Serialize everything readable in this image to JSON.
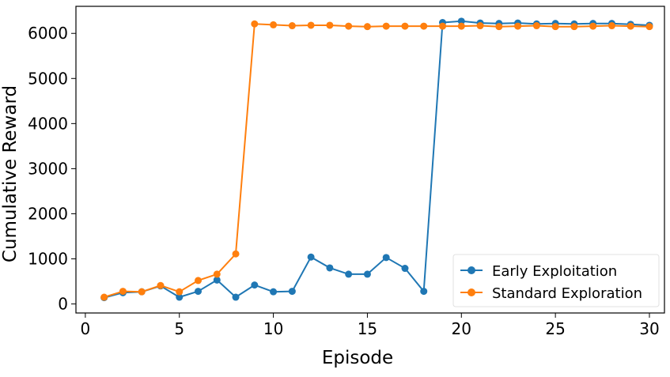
{
  "chart_data": {
    "type": "line",
    "title": "",
    "xlabel": "Episode",
    "ylabel": "Cumulative Reward",
    "xlim": [
      -0.5,
      30.8
    ],
    "ylim": [
      -200,
      6600
    ],
    "xticks": [
      0,
      5,
      10,
      15,
      20,
      25,
      30
    ],
    "yticks": [
      0,
      1000,
      2000,
      3000,
      4000,
      5000,
      6000
    ],
    "grid": false,
    "legend_position": "bottom-right",
    "x": [
      1,
      2,
      3,
      4,
      5,
      6,
      7,
      8,
      9,
      10,
      11,
      12,
      13,
      14,
      15,
      16,
      17,
      18,
      19,
      20,
      21,
      22,
      23,
      24,
      25,
      26,
      27,
      28,
      29,
      30
    ],
    "series": [
      {
        "name": "Early Exploitation",
        "color": "#1f77b4",
        "values": [
          140,
          250,
          270,
          400,
          150,
          280,
          530,
          150,
          420,
          270,
          280,
          1040,
          800,
          660,
          660,
          1030,
          790,
          280,
          6240,
          6270,
          6230,
          6220,
          6230,
          6210,
          6220,
          6210,
          6220,
          6220,
          6200,
          6180
        ]
      },
      {
        "name": "Standard Exploration",
        "color": "#ff7f0e",
        "values": [
          150,
          280,
          270,
          410,
          270,
          520,
          660,
          1110,
          6210,
          6190,
          6170,
          6180,
          6180,
          6160,
          6150,
          6160,
          6160,
          6160,
          6160,
          6160,
          6170,
          6150,
          6160,
          6170,
          6150,
          6150,
          6160,
          6170,
          6160,
          6150
        ]
      }
    ]
  }
}
